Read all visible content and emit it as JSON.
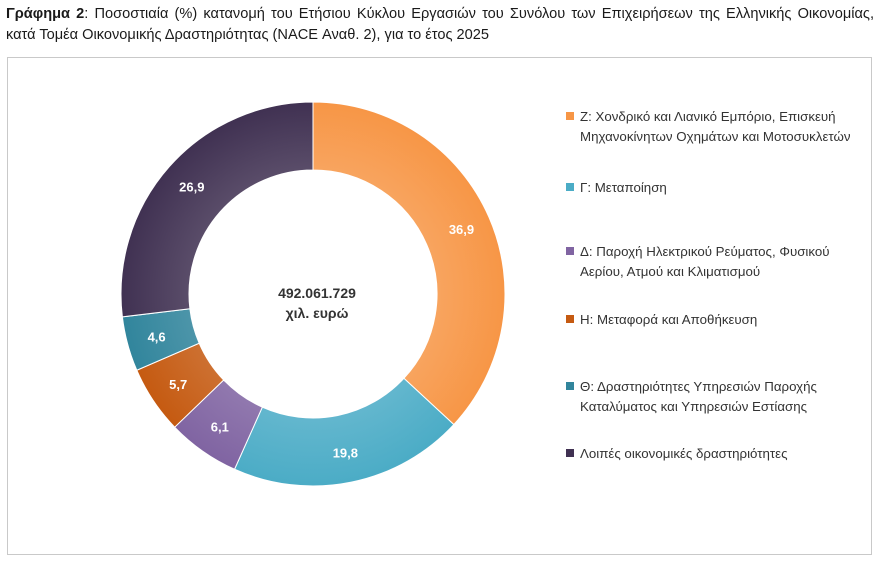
{
  "caption": {
    "prefix": "Γράφημα 2",
    "text": ": Ποσοστιαία (%) κατανομή του Ετήσιου Κύκλου Εργασιών του Συνόλου των Επιχειρήσεων της Ελληνικής Οικονομίας, κατά Τομέα Οικονομικής Δραστηριότητας (NACE Αναθ. 2), για το έτος 2025"
  },
  "center": {
    "value": "492.061.729",
    "unit": "χιλ. ευρώ"
  },
  "chart_data": {
    "type": "pie",
    "subtype": "donut",
    "title": "Γράφημα 2: Ποσοστιαία (%) κατανομή του Ετήσιου Κύκλου Εργασιών του Συνόλου των Επιχειρήσεων της Ελληνικής Οικονομίας, κατά Τομέα Οικονομικής Δραστηριότητας (NACE Αναθ. 2), για το έτος 2025",
    "center_label": "492.061.729 χιλ. ευρώ",
    "legend_position": "right",
    "slices": [
      {
        "label": "Ζ: Χονδρικό και Λιανικό Εμπόριο, Επισκευή Μηχανοκίνητων Οχημάτων και Μοτοσυκλετών",
        "value": 36.9,
        "display": "36,9",
        "color": "#F79646"
      },
      {
        "label": "Γ: Μεταποίηση",
        "value": 19.8,
        "display": "19,8",
        "color": "#4BACC6"
      },
      {
        "label": "Δ: Παροχή Ηλεκτρικού Ρεύματος, Φυσικού Αερίου, Ατμού και Κλιματισμού",
        "value": 6.1,
        "display": "6,1",
        "color": "#8064A2"
      },
      {
        "label": "Η: Μεταφορά και Αποθήκευση",
        "value": 5.7,
        "display": "5,7",
        "color": "#C0504D",
        "color_alt": "#C55A11"
      },
      {
        "label": "Θ: Δραστηριότητες Υπηρεσιών Παροχής Καταλύματος και Υπηρεσιών Εστίασης",
        "value": 4.6,
        "display": "4,6",
        "color": "#31859C"
      },
      {
        "label": "Λοιπές οικονομικές δραστηριότητες",
        "value": 26.9,
        "display": "26,9",
        "color": "#403152"
      }
    ]
  }
}
